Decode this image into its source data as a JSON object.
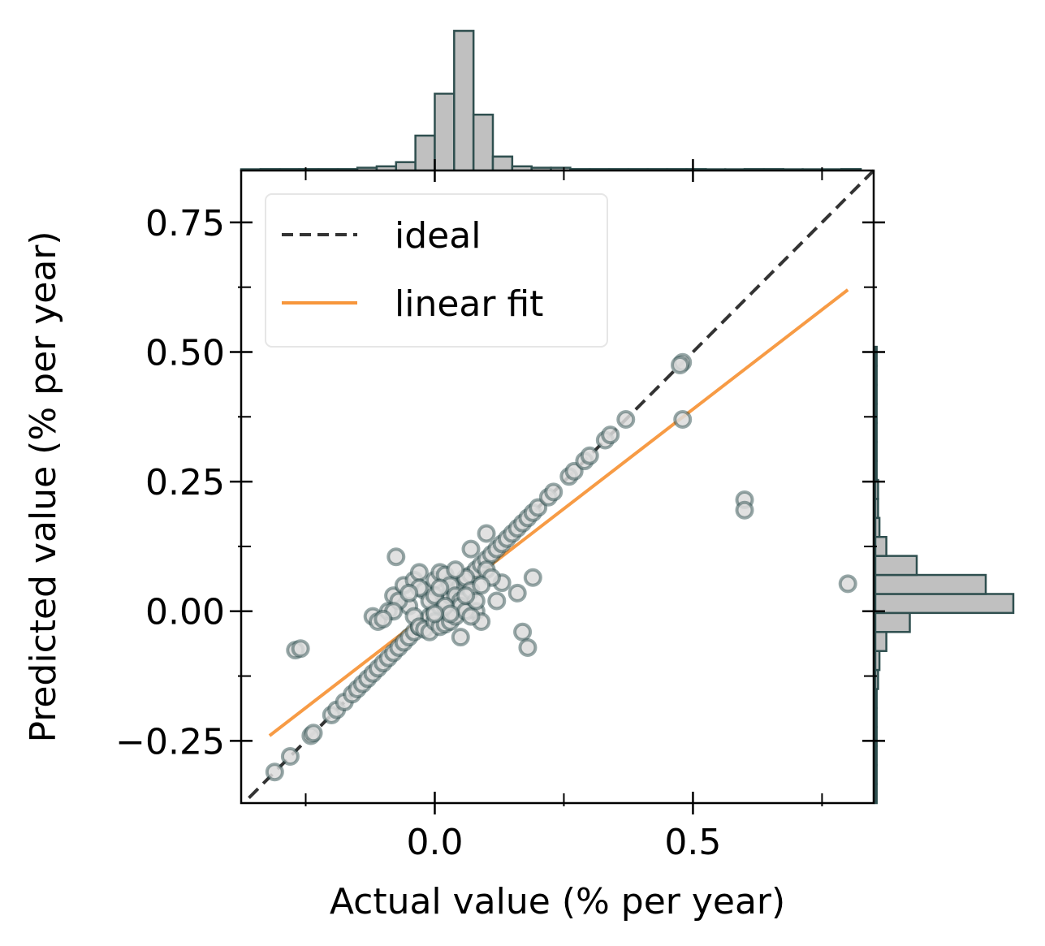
{
  "chart_data": {
    "type": "scatter",
    "xlabel": "Actual value (% per year)",
    "ylabel": "Predicted value (% per year)",
    "xlim": [
      -0.375,
      0.85
    ],
    "ylim": [
      -0.37,
      0.85
    ],
    "x_ticks": [
      0.0,
      0.5
    ],
    "x_tick_labels": [
      "0.0",
      "0.5"
    ],
    "x_minor_ticks": [
      -0.25,
      0.25,
      0.75
    ],
    "y_ticks": [
      -0.25,
      0.0,
      0.25,
      0.5,
      0.75
    ],
    "y_tick_labels": [
      "−0.25",
      "0.00",
      "0.25",
      "0.50",
      "0.75"
    ],
    "y_minor_ticks": [
      -0.125,
      0.125,
      0.375,
      0.625
    ],
    "grid": false,
    "legend": {
      "placement": "top-left",
      "entries": [
        {
          "label": "ideal",
          "style": "dashed",
          "color": "#333333"
        },
        {
          "label": "linear fit",
          "style": "solid",
          "color": "#f7963b"
        }
      ]
    },
    "series": [
      {
        "kind": "scatter",
        "color": "#2f4f4f",
        "points": [
          [
            -0.31,
            -0.31
          ],
          [
            -0.28,
            -0.28
          ],
          [
            -0.24,
            -0.24
          ],
          [
            -0.235,
            -0.235
          ],
          [
            -0.2,
            -0.2
          ],
          [
            -0.19,
            -0.19
          ],
          [
            -0.175,
            -0.175
          ],
          [
            -0.16,
            -0.16
          ],
          [
            -0.15,
            -0.15
          ],
          [
            -0.14,
            -0.14
          ],
          [
            -0.13,
            -0.13
          ],
          [
            -0.12,
            -0.12
          ],
          [
            -0.11,
            -0.11
          ],
          [
            -0.1,
            -0.1
          ],
          [
            -0.09,
            -0.09
          ],
          [
            -0.08,
            -0.08
          ],
          [
            -0.07,
            -0.07
          ],
          [
            -0.06,
            -0.06
          ],
          [
            -0.05,
            -0.05
          ],
          [
            -0.04,
            -0.04
          ],
          [
            -0.03,
            -0.03
          ],
          [
            -0.02,
            -0.02
          ],
          [
            -0.01,
            -0.01
          ],
          [
            0.0,
            0.0
          ],
          [
            0.01,
            0.01
          ],
          [
            0.02,
            0.02
          ],
          [
            0.03,
            0.03
          ],
          [
            0.04,
            0.04
          ],
          [
            0.05,
            0.05
          ],
          [
            0.06,
            0.06
          ],
          [
            0.07,
            0.07
          ],
          [
            0.08,
            0.08
          ],
          [
            0.09,
            0.09
          ],
          [
            0.1,
            0.1
          ],
          [
            0.11,
            0.11
          ],
          [
            0.12,
            0.12
          ],
          [
            0.13,
            0.13
          ],
          [
            0.14,
            0.14
          ],
          [
            0.15,
            0.15
          ],
          [
            0.16,
            0.16
          ],
          [
            0.17,
            0.17
          ],
          [
            0.18,
            0.18
          ],
          [
            0.19,
            0.19
          ],
          [
            0.2,
            0.2
          ],
          [
            0.22,
            0.22
          ],
          [
            0.23,
            0.23
          ],
          [
            0.26,
            0.26
          ],
          [
            0.27,
            0.27
          ],
          [
            0.29,
            0.29
          ],
          [
            0.3,
            0.3
          ],
          [
            0.33,
            0.33
          ],
          [
            0.34,
            0.34
          ],
          [
            0.37,
            0.37
          ],
          [
            0.48,
            0.48
          ],
          [
            0.475,
            0.475
          ],
          [
            0.48,
            0.37
          ],
          [
            0.6,
            0.215
          ],
          [
            0.6,
            0.195
          ],
          [
            0.8,
            0.053
          ],
          [
            -0.27,
            -0.075
          ],
          [
            -0.26,
            -0.072
          ],
          [
            -0.075,
            0.105
          ],
          [
            0.1,
            0.15
          ],
          [
            0.07,
            0.12
          ],
          [
            0.19,
            0.065
          ],
          [
            0.17,
            -0.04
          ],
          [
            0.18,
            -0.07
          ],
          [
            0.13,
            0.055
          ],
          [
            0.16,
            0.035
          ],
          [
            0.05,
            -0.05
          ],
          [
            -0.12,
            -0.01
          ],
          [
            -0.11,
            -0.02
          ],
          [
            -0.09,
            0.0
          ],
          [
            -0.08,
            0.03
          ],
          [
            -0.06,
            0.05
          ],
          [
            -0.04,
            0.06
          ],
          [
            -0.03,
            0.075
          ],
          [
            -0.02,
            0.04
          ],
          [
            -0.01,
            0.02
          ],
          [
            0.0,
            0.06
          ],
          [
            0.01,
            0.075
          ],
          [
            0.02,
            0.07
          ],
          [
            0.03,
            0.05
          ],
          [
            0.04,
            0.03
          ],
          [
            0.05,
            0.02
          ],
          [
            0.06,
            0.065
          ],
          [
            0.07,
            0.04
          ],
          [
            0.08,
            0.0
          ],
          [
            0.09,
            -0.02
          ],
          [
            0.1,
            0.08
          ],
          [
            0.11,
            0.065
          ],
          [
            -0.05,
            0.01
          ],
          [
            -0.04,
            -0.01
          ],
          [
            -0.03,
            -0.03
          ],
          [
            -0.02,
            -0.035
          ],
          [
            -0.01,
            -0.04
          ],
          [
            0.0,
            -0.02
          ],
          [
            0.01,
            -0.03
          ],
          [
            0.02,
            -0.025
          ],
          [
            0.03,
            -0.02
          ],
          [
            0.04,
            -0.01
          ],
          [
            0.05,
            0.01
          ],
          [
            0.06,
            0.0
          ],
          [
            0.07,
            -0.01
          ],
          [
            0.08,
            0.02
          ],
          [
            0.09,
            0.05
          ],
          [
            0.12,
            0.02
          ],
          [
            -0.07,
            0.02
          ],
          [
            -0.08,
            0.0
          ],
          [
            -0.1,
            -0.015
          ],
          [
            0.0,
            0.03
          ],
          [
            0.02,
            0.01
          ],
          [
            0.04,
            0.08
          ],
          [
            -0.03,
            0.045
          ],
          [
            0.01,
            0.045
          ],
          [
            0.03,
            -0.005
          ],
          [
            0.06,
            0.03
          ],
          [
            -0.05,
            0.035
          ],
          [
            0.0,
            -0.005
          ]
        ]
      },
      {
        "name": "ideal",
        "kind": "line",
        "style": "dashed",
        "color": "#333333",
        "x": [
          -0.36,
          0.85
        ],
        "y": [
          -0.36,
          0.85
        ]
      },
      {
        "name": "linear fit",
        "kind": "line",
        "style": "solid",
        "color": "#f7963b",
        "x": [
          -0.32,
          0.8
        ],
        "y": [
          -0.24,
          0.62
        ]
      }
    ],
    "marginal_x_histogram": {
      "bin_edges": [
        -0.375,
        -0.3375,
        -0.3,
        -0.2625,
        -0.225,
        -0.1875,
        -0.15,
        -0.1125,
        -0.075,
        -0.0375,
        0.0,
        0.0375,
        0.075,
        0.1125,
        0.15,
        0.1875,
        0.225,
        0.2625,
        0.3,
        0.3375,
        0.375,
        0.4125,
        0.45,
        0.4875,
        0.525,
        0.5625,
        0.6,
        0.6375,
        0.675,
        0.7125,
        0.75,
        0.7875,
        0.825
      ],
      "counts": [
        0,
        1,
        1,
        1,
        1,
        1,
        2,
        3,
        6,
        25,
        55,
        100,
        40,
        10,
        3,
        2,
        2,
        1,
        1,
        1,
        1,
        1,
        1,
        1,
        0,
        0,
        1,
        1,
        0,
        0,
        0,
        1
      ]
    },
    "marginal_y_histogram": {
      "bin_edges": [
        -0.37,
        -0.3333,
        -0.2967,
        -0.26,
        -0.2233,
        -0.1867,
        -0.15,
        -0.1133,
        -0.0767,
        -0.04,
        -0.0033,
        0.0333,
        0.07,
        0.1067,
        0.1433,
        0.18,
        0.2167,
        0.2533,
        0.29,
        0.3267,
        0.3633,
        0.4,
        0.4367,
        0.4733,
        0.51
      ],
      "counts": [
        1,
        1,
        1,
        1,
        1,
        1,
        2,
        3,
        8,
        25,
        100,
        80,
        30,
        8,
        3,
        2,
        2,
        1,
        1,
        1,
        1,
        1,
        1,
        1
      ]
    }
  },
  "colors": {
    "scatter_edge": "#2f4f4f",
    "scatter_face": "#dcdcdc",
    "ideal_line": "#333333",
    "fit_line": "#f7963b",
    "hist_fill": "#c0c0c0",
    "hist_edge": "#2f4f4f"
  }
}
